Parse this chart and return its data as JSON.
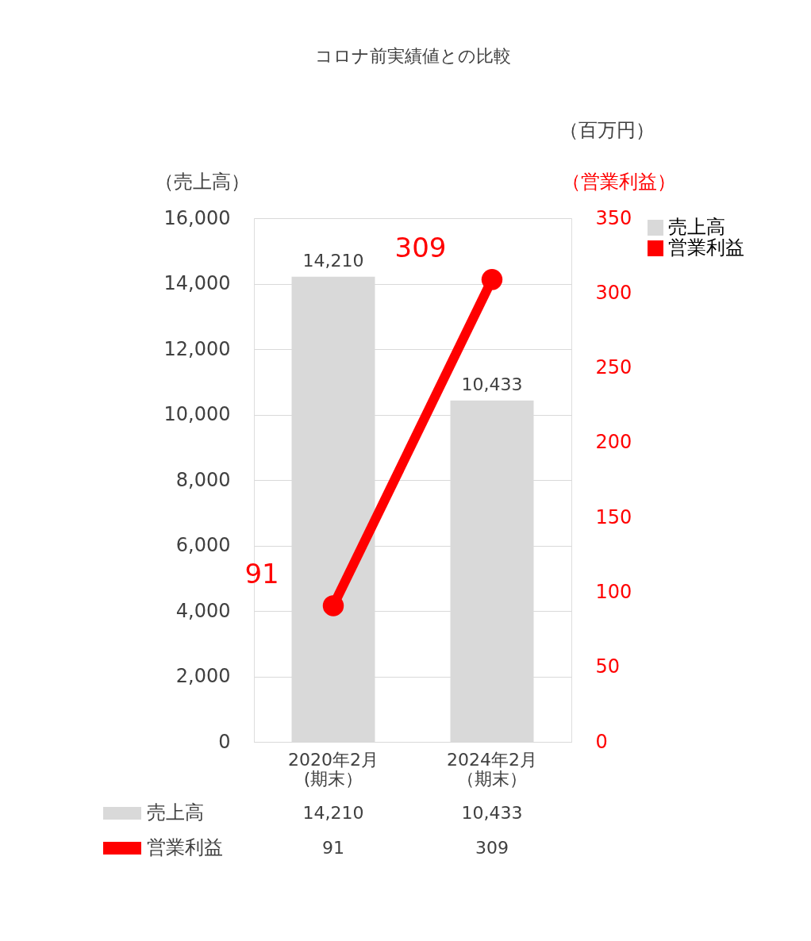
{
  "chart_data": {
    "type": "bar",
    "title": "コロナ前実績値との比較",
    "ylabel": "（売上高）",
    "y2label": "（営業利益）",
    "annotations": [
      "（百万円）"
    ],
    "categories": [
      "2020年2月(期末）",
      "2024年2月（期末）"
    ],
    "series": [
      {
        "name": "売上高",
        "color": "#d9d9d9",
        "values": [
          14210,
          10433
        ],
        "value_labels": [
          "14,210",
          "10,433"
        ]
      },
      {
        "name": "営業利益",
        "type": "line",
        "axis": "y2",
        "color": "#ff0000",
        "values": [
          91,
          309
        ],
        "value_labels": [
          "91",
          "309"
        ]
      }
    ],
    "ylim": [
      0,
      16000
    ],
    "yticks": [
      0,
      {
        "value": 2000,
        "label": "2,000"
      },
      {
        "value": 4000,
        "label": "4,000"
      },
      {
        "value": 6000,
        "label": "6,000"
      },
      {
        "value": 8000,
        "label": "8,000"
      },
      {
        "value": 10000,
        "label": "10,000"
      },
      {
        "value": 12000,
        "label": "12,000"
      },
      {
        "value": 14000,
        "label": "14,000"
      },
      {
        "value": 16000,
        "label": "16,000"
      }
    ],
    "y2lim": [
      0,
      350
    ],
    "y2ticks": [
      0,
      50,
      100,
      150,
      200,
      250,
      300,
      350
    ],
    "grid": "y",
    "legend": "right",
    "marker": "circle",
    "data_labels": true
  }
}
